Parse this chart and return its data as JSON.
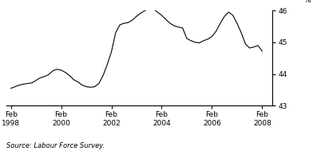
{
  "title": "",
  "ylabel": "%",
  "source_text": "Source: Labour Force Survey.",
  "xlim_start": 1997.9,
  "xlim_end": 2008.5,
  "ylim": [
    43,
    46
  ],
  "yticks": [
    43,
    44,
    45,
    46
  ],
  "xtick_positions": [
    1998.083,
    2000.083,
    2002.083,
    2004.083,
    2006.083,
    2008.083
  ],
  "xtick_labels": [
    "Feb\n1998",
    "Feb\n2000",
    "Feb\n2002",
    "Feb\n2004",
    "Feb\n2006",
    "Feb\n2008"
  ],
  "line_color": "#000000",
  "line_width": 0.8,
  "background_color": "#ffffff",
  "data_x": [
    1998.083,
    1998.25,
    1998.417,
    1998.583,
    1998.75,
    1998.917,
    1999.083,
    1999.25,
    1999.417,
    1999.583,
    1999.75,
    1999.917,
    2000.083,
    2000.25,
    2000.417,
    2000.583,
    2000.75,
    2000.917,
    2001.083,
    2001.25,
    2001.417,
    2001.583,
    2001.75,
    2001.917,
    2002.083,
    2002.25,
    2002.417,
    2002.583,
    2002.75,
    2002.917,
    2003.083,
    2003.25,
    2003.417,
    2003.583,
    2003.75,
    2003.917,
    2004.083,
    2004.25,
    2004.417,
    2004.583,
    2004.75,
    2004.917,
    2005.083,
    2005.25,
    2005.417,
    2005.583,
    2005.75,
    2005.917,
    2006.083,
    2006.25,
    2006.417,
    2006.583,
    2006.75,
    2006.917,
    2007.083,
    2007.25,
    2007.417,
    2007.583,
    2007.75,
    2007.917,
    2008.083
  ],
  "data_y": [
    43.55,
    43.6,
    43.65,
    43.68,
    43.7,
    43.72,
    43.8,
    43.88,
    43.92,
    43.98,
    44.1,
    44.15,
    44.12,
    44.05,
    43.95,
    43.82,
    43.75,
    43.65,
    43.6,
    43.58,
    43.6,
    43.7,
    43.95,
    44.3,
    44.7,
    45.3,
    45.55,
    45.6,
    45.62,
    45.7,
    45.82,
    45.92,
    46.0,
    46.05,
    46.05,
    45.95,
    45.85,
    45.72,
    45.6,
    45.52,
    45.48,
    45.45,
    45.12,
    45.05,
    45.0,
    44.98,
    45.05,
    45.1,
    45.18,
    45.35,
    45.6,
    45.82,
    45.95,
    45.85,
    45.6,
    45.3,
    44.95,
    44.82,
    44.85,
    44.9,
    44.72
  ]
}
